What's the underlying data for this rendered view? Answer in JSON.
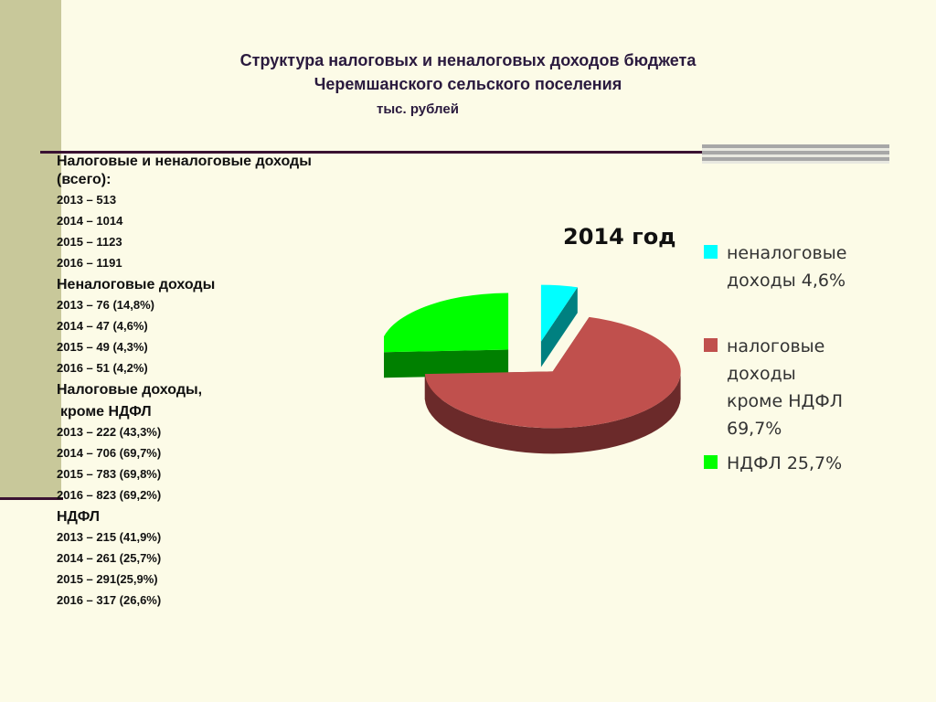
{
  "title": {
    "line1": "Структура налоговых и неналоговых доходов бюджета",
    "line2": "Черемшанского сельского поселения",
    "unit": "тыс. рублей"
  },
  "stats": {
    "sections": [
      {
        "heading": "Налоговые и неналоговые доходы (всего):",
        "rows": [
          "2013 – 513",
          "2014 – 1014",
          "2015 – 1123",
          "2016 – 1191"
        ]
      },
      {
        "heading": "Неналоговые доходы",
        "rows": [
          "2013 – 76 (14,8%)",
          "2014 – 47 (4,6%)",
          "2015 – 49 (4,3%)",
          "2016 – 51 (4,2%)"
        ]
      },
      {
        "heading": "Налоговые доходы,",
        "heading2": " кроме НДФЛ",
        "rows": [
          "2013 – 222 (43,3%)",
          "2014 – 706 (69,7%)",
          "2015 – 783 (69,8%)",
          "2016 – 823 (69,2%)"
        ]
      },
      {
        "heading": "НДФЛ",
        "rows": [
          "2013 – 215 (41,9%)",
          "2014 – 261 (25,7%)",
          "2015 – 291(25,9%)",
          "2016 – 317 (26,6%)"
        ]
      }
    ]
  },
  "chart_data": {
    "type": "pie",
    "title": "2014 год",
    "legend_position": "right",
    "slices": [
      {
        "label_line1": "неналоговые",
        "label_line2": "доходы 4,6%",
        "value": 4.6,
        "color": "#00ffff",
        "side": "#008080"
      },
      {
        "label_line1": "налоговые",
        "label_line2": "доходы",
        "label_line3": "кроме НДФЛ",
        "label_line4": "69,7%",
        "value": 69.7,
        "color": "#c0504d",
        "side": "#6b2a2a"
      },
      {
        "label_line1": "НДФЛ 25,7%",
        "value": 25.7,
        "color": "#00ff00",
        "side": "#008000"
      }
    ]
  }
}
